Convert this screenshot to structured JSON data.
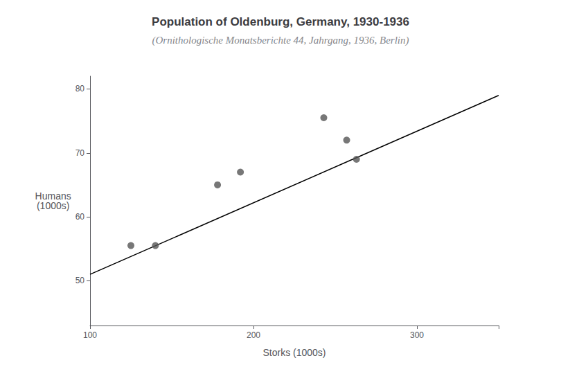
{
  "chart_data": {
    "type": "scatter",
    "title": "Population of Oldenburg, Germany, 1930-1936",
    "subtitle": "(Ornithologische Monatsberichte 44, Jahrgang, 1936, Berlin)",
    "xlabel": "Storks (1000s)",
    "ylabel": "Humans\n(1000s)",
    "series": [
      {
        "type": "scatter",
        "color": "#555555",
        "x": [
          125,
          140,
          178,
          192,
          243,
          257,
          263
        ],
        "values": [
          55.5,
          55.5,
          65.0,
          67.0,
          75.5,
          72.0,
          69.0
        ]
      },
      {
        "type": "line",
        "color": "#000000",
        "x": [
          100,
          350
        ],
        "values": [
          51.0,
          79.0
        ]
      }
    ],
    "xlim": [
      100,
      350
    ],
    "ylim": [
      43,
      82
    ],
    "xticks": [
      100,
      200,
      300
    ],
    "yticks": [
      50,
      60,
      70,
      80
    ],
    "grid": false
  }
}
